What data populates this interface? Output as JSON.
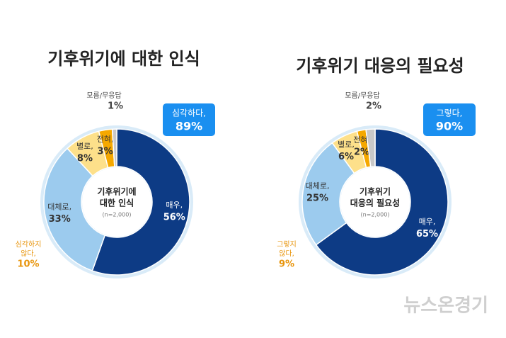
{
  "chart_data": [
    {
      "type": "donut",
      "title": "기후위기에 대한 인식",
      "center_label": [
        "기후위기에",
        "대한 인식"
      ],
      "sample": "(n=2,000)",
      "categories": [
        "매우,",
        "대체로,",
        "별로,",
        "전혀,",
        "모름/무응답"
      ],
      "values": [
        56,
        33,
        8,
        3,
        1
      ],
      "value_labels": [
        "56%",
        "33%",
        "8%",
        "3%",
        "1%"
      ],
      "colors": [
        "#0d3b85",
        "#9ccbee",
        "#fde08a",
        "#f5a800",
        "#c8c8c8"
      ],
      "positive": {
        "label": "심각하다,",
        "value": 89,
        "value_label": "89%"
      },
      "negative": {
        "label": [
          "심각하지",
          "않다,"
        ],
        "value": 10,
        "value_label": "10%"
      }
    },
    {
      "type": "donut",
      "title": "기후위기 대응의 필요성",
      "center_label": [
        "기후위기",
        "대응의 필요성"
      ],
      "sample": "(n=2,000)",
      "categories": [
        "매우,",
        "대체로,",
        "별로,",
        "전혀,",
        "모름/무응답"
      ],
      "values": [
        65,
        25,
        6,
        2,
        2
      ],
      "value_labels": [
        "65%",
        "25%",
        "6%",
        "2%",
        "2%"
      ],
      "colors": [
        "#0d3b85",
        "#9ccbee",
        "#fde08a",
        "#f5a800",
        "#c8c8c8"
      ],
      "positive": {
        "label": "그렇다,",
        "value": 90,
        "value_label": "90%"
      },
      "negative": {
        "label": [
          "그렇지",
          "않다,"
        ],
        "value": 9,
        "value_label": "9%"
      }
    }
  ],
  "watermark": "뉴스온경기"
}
